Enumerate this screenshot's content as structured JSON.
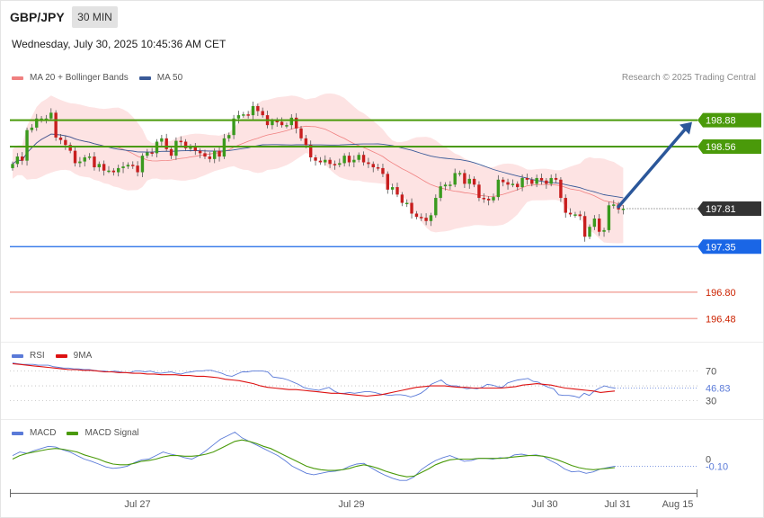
{
  "header": {
    "symbol": "GBP/JPY",
    "timeframe": "30 MIN",
    "datetime": "Wednesday, July 30, 2025 10:45:36 AM CET",
    "copyright": "Research © 2025 Trading Central"
  },
  "colors": {
    "up": "#3a9a1e",
    "down": "#c81e1e",
    "band": "#fde3e3",
    "ma20": "#f08080",
    "ma50": "#3a5a98",
    "resistance": "#4a9a0a",
    "pivot": "#1a66e6",
    "support": "#f3a9a0",
    "support_text": "#cc2200",
    "arrow": "#2b579a",
    "last_price": "#333333",
    "rsi": "#5a7ad8",
    "rsi_ma": "#dd1111",
    "macd": "#5a7ad8",
    "macd_signal": "#4a9a0a"
  },
  "chart_data": [
    {
      "type": "candlestick",
      "title": "GBP/JPY 30 MIN",
      "legend": [
        "MA 20 + Bollinger Bands",
        "MA 50"
      ],
      "legend_position": "top-left",
      "x_ticks": [
        "Jul 27",
        "Jul 29",
        "Jul 30",
        "Jul 31",
        "Aug 15"
      ],
      "ylim": [
        196.2,
        199.3
      ],
      "grid": false,
      "last_price": 197.81,
      "levels": [
        {
          "role": "resistance",
          "value": 198.88,
          "label": "198.88"
        },
        {
          "role": "resistance",
          "value": 198.56,
          "label": "198.56"
        },
        {
          "role": "last",
          "value": 197.81,
          "label": "197.81"
        },
        {
          "role": "pivot",
          "value": 197.35,
          "label": "197.35"
        },
        {
          "role": "support",
          "value": 196.8,
          "label": "196.80"
        },
        {
          "role": "support",
          "value": 196.48,
          "label": "196.48"
        }
      ],
      "forecast_arrow": {
        "from": 197.81,
        "to": 198.88
      },
      "closes": [
        198.35,
        198.44,
        198.39,
        198.76,
        198.79,
        198.9,
        198.9,
        198.9,
        198.97,
        198.67,
        198.64,
        198.58,
        198.51,
        198.36,
        198.38,
        198.43,
        198.44,
        198.31,
        198.35,
        198.27,
        198.27,
        198.25,
        198.3,
        198.32,
        198.34,
        198.33,
        198.25,
        198.45,
        198.49,
        198.48,
        198.62,
        198.66,
        198.53,
        198.45,
        198.63,
        198.62,
        198.54,
        198.55,
        198.51,
        198.48,
        198.44,
        198.41,
        198.51,
        198.44,
        198.66,
        198.7,
        198.9,
        198.94,
        198.95,
        198.94,
        199.05,
        198.99,
        198.94,
        198.82,
        198.87,
        198.86,
        198.82,
        198.82,
        198.91,
        198.78,
        198.66,
        198.58,
        198.43,
        198.39,
        198.37,
        198.4,
        198.35,
        198.34,
        198.36,
        198.45,
        198.37,
        198.4,
        198.46,
        198.37,
        198.35,
        198.31,
        198.3,
        198.23,
        198.04,
        198.07,
        197.98,
        197.88,
        197.88,
        197.75,
        197.71,
        197.7,
        197.66,
        197.73,
        197.94,
        198.08,
        198.1,
        198.1,
        198.24,
        198.24,
        198.11,
        198.17,
        198.1,
        197.94,
        197.93,
        197.91,
        197.95,
        198.16,
        198.13,
        198.1,
        198.11,
        198.07,
        198.18,
        198.16,
        198.11,
        198.18,
        198.15,
        198.11,
        198.18,
        198.16,
        197.94,
        197.76,
        197.74,
        197.74,
        197.72,
        197.47,
        197.59,
        197.69,
        197.53,
        197.55,
        197.85,
        197.86,
        197.8,
        197.81
      ]
    },
    {
      "type": "line",
      "legend": [
        "RSI",
        "9MA"
      ],
      "y_ticks": [
        "70",
        "30"
      ],
      "ylim": [
        5,
        100
      ],
      "last_value": 46.83,
      "series": [
        {
          "name": "RSI",
          "values": [
            81,
            80,
            79,
            79,
            79,
            78,
            78,
            78,
            76,
            75,
            74,
            74,
            73,
            73,
            72,
            72,
            71,
            70,
            70,
            69,
            70,
            69,
            68,
            68,
            70,
            70,
            69,
            70,
            68,
            67,
            68,
            69,
            67,
            66,
            68,
            69,
            70,
            70,
            71,
            71,
            69,
            67,
            64,
            63,
            66,
            69,
            69,
            70,
            70,
            70,
            69,
            62,
            61,
            60,
            58,
            55,
            52,
            48,
            46,
            45,
            44,
            46,
            48,
            43,
            40,
            40,
            41,
            40,
            41,
            42,
            42,
            41,
            39,
            38,
            37,
            38,
            38,
            37,
            35,
            37,
            40,
            45,
            52,
            55,
            58,
            52,
            50,
            50,
            48,
            46,
            47,
            46,
            48,
            52,
            51,
            49,
            48,
            54,
            56,
            58,
            59,
            60,
            56,
            55,
            51,
            48,
            46,
            38,
            37,
            37,
            36,
            34,
            40,
            37,
            43,
            47,
            50,
            48,
            47
          ]
        },
        {
          "name": "9MA",
          "values": [
            80,
            79,
            78,
            77,
            76,
            75,
            74,
            73,
            72,
            72,
            71,
            71,
            70,
            69,
            69,
            68,
            68,
            67,
            67,
            66,
            66,
            65,
            65,
            65,
            64,
            64,
            63,
            63,
            62,
            61,
            59,
            58,
            57,
            55,
            53,
            50,
            48,
            47,
            46,
            45,
            45,
            44,
            43,
            42,
            41,
            40,
            40,
            39,
            38,
            37,
            36,
            37,
            38,
            40,
            42,
            44,
            46,
            48,
            49,
            50,
            50,
            50,
            49,
            48,
            48,
            47,
            47,
            47,
            47,
            47,
            48,
            49,
            51,
            52,
            53,
            52,
            51,
            49,
            47,
            46,
            45,
            44,
            43,
            41,
            42,
            43
          ]
        }
      ]
    },
    {
      "type": "line",
      "legend": [
        "MACD",
        "MACD Signal"
      ],
      "y_ticks": [
        "0"
      ],
      "ylim": [
        -0.45,
        0.45
      ],
      "last_value": -0.1,
      "series": [
        {
          "name": "MACD",
          "values": [
            0.05,
            0.1,
            0.08,
            0.12,
            0.15,
            0.18,
            0.17,
            0.13,
            0.1,
            0.05,
            0.0,
            -0.03,
            -0.07,
            -0.11,
            -0.13,
            -0.12,
            -0.1,
            -0.05,
            -0.01,
            0.0,
            0.05,
            0.1,
            0.07,
            0.05,
            0.02,
            0.0,
            0.05,
            0.12,
            0.2,
            0.28,
            0.33,
            0.38,
            0.3,
            0.25,
            0.2,
            0.15,
            0.1,
            0.05,
            -0.02,
            -0.1,
            -0.15,
            -0.2,
            -0.22,
            -0.2,
            -0.18,
            -0.17,
            -0.15,
            -0.1,
            -0.07,
            -0.06,
            -0.12,
            -0.18,
            -0.23,
            -0.27,
            -0.3,
            -0.3,
            -0.25,
            -0.15,
            -0.08,
            -0.02,
            0.02,
            0.05,
            0.01,
            -0.03,
            -0.02,
            0.01,
            0.01,
            0.0,
            0.02,
            0.01,
            0.06,
            0.07,
            0.05,
            0.06,
            0.04,
            -0.02,
            -0.07,
            -0.14,
            -0.18,
            -0.17,
            -0.2,
            -0.18,
            -0.14,
            -0.12,
            -0.1
          ]
        },
        {
          "name": "MACD Signal",
          "values": [
            0.0,
            0.05,
            0.08,
            0.1,
            0.12,
            0.14,
            0.15,
            0.14,
            0.12,
            0.1,
            0.06,
            0.03,
            0.0,
            -0.04,
            -0.07,
            -0.08,
            -0.08,
            -0.06,
            -0.03,
            -0.02,
            0.0,
            0.03,
            0.05,
            0.05,
            0.04,
            0.04,
            0.05,
            0.07,
            0.1,
            0.15,
            0.2,
            0.25,
            0.27,
            0.25,
            0.22,
            0.18,
            0.15,
            0.1,
            0.05,
            0.0,
            -0.05,
            -0.1,
            -0.13,
            -0.15,
            -0.16,
            -0.16,
            -0.15,
            -0.13,
            -0.1,
            -0.08,
            -0.1,
            -0.13,
            -0.17,
            -0.2,
            -0.23,
            -0.25,
            -0.24,
            -0.19,
            -0.14,
            -0.08,
            -0.04,
            -0.01,
            0.0,
            0.0,
            0.0,
            0.01,
            0.01,
            0.01,
            0.01,
            0.02,
            0.03,
            0.04,
            0.05,
            0.05,
            0.04,
            0.02,
            -0.01,
            -0.05,
            -0.09,
            -0.12,
            -0.14,
            -0.15,
            -0.14,
            -0.13,
            -0.12
          ]
        }
      ]
    }
  ]
}
